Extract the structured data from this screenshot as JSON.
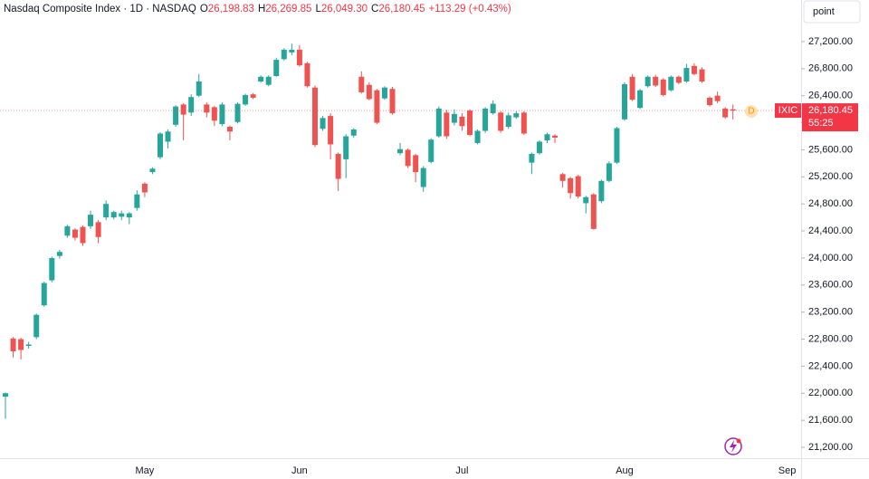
{
  "chart_data": {
    "type": "candlestick",
    "title": "Nasdaq Composite Index · 1D · NASDAQ",
    "ohlc_labels": [
      {
        "key": "O",
        "text": "26,198.83"
      },
      {
        "key": "H",
        "text": "26,269.85"
      },
      {
        "key": "L",
        "text": "26,049.30"
      },
      {
        "key": "C",
        "text": "26,180.45"
      }
    ],
    "change": "+113.29 (+0.43%)",
    "scale_button": "point",
    "symbol": "IXIC",
    "last_price_label": "26,180.45",
    "countdown": "55:25",
    "marker": "D",
    "up_color": "#26a69a",
    "down_color": "#ef5350",
    "categories": [
      null,
      null,
      null,
      null,
      null,
      null,
      null,
      null,
      null,
      null,
      null,
      null,
      null,
      null,
      null,
      null,
      null,
      null,
      "May",
      null,
      null,
      null,
      null,
      null,
      null,
      null,
      null,
      null,
      null,
      null,
      null,
      null,
      null,
      null,
      null,
      null,
      null,
      null,
      "Jun",
      null,
      null,
      null,
      null,
      null,
      null,
      null,
      null,
      null,
      null,
      null,
      null,
      null,
      null,
      null,
      null,
      null,
      null,
      null,
      null,
      "Jul",
      null,
      null,
      null,
      null,
      null,
      null,
      null,
      null,
      null,
      null,
      null,
      null,
      null,
      null,
      null,
      null,
      null,
      null,
      null,
      null,
      "Aug",
      null,
      null,
      null,
      null,
      null,
      null,
      null,
      null,
      null,
      null,
      null,
      null,
      null,
      null,
      null,
      null,
      null,
      null,
      null,
      null,
      "Sep"
    ],
    "open": [
      21950,
      22810,
      22800,
      22700,
      22830,
      23300,
      23670,
      24030,
      24330,
      24420,
      24460,
      24470,
      24530,
      24600,
      24600,
      24610,
      24600,
      24740,
      25100,
      25270,
      25490,
      25720,
      25970,
      26270,
      26150,
      26400,
      26270,
      26230,
      25980,
      25940,
      26010,
      26270,
      26420,
      26610,
      26560,
      26690,
      26940,
      27040,
      27080,
      26880,
      26520,
      25910,
      26100,
      25540,
      25460,
      25810,
      26680,
      26560,
      26480,
      26360,
      26500,
      25550,
      25600,
      25520,
      25050,
      25420,
      25800,
      26150,
      26000,
      26090,
      26180,
      25700,
      25880,
      26140,
      26150,
      25940,
      26080,
      26150,
      25410,
      25550,
      25740,
      25810,
      25240,
      25180,
      25210,
      24810,
      24940,
      24840,
      25140,
      25410,
      26050,
      26680,
      26220,
      26540,
      26680,
      26640,
      26480,
      26680,
      26610,
      26840,
      26790,
      26370,
      26400,
      26210,
      26198.83,
      null,
      null,
      null,
      null,
      null,
      null,
      null
    ],
    "high": [
      22010,
      22830,
      22820,
      22760,
      23180,
      23650,
      24020,
      24120,
      24490,
      24440,
      24480,
      24700,
      24560,
      24850,
      24700,
      24700,
      24680,
      25000,
      25120,
      25340,
      25860,
      25900,
      26260,
      26290,
      26420,
      26720,
      26300,
      26250,
      26300,
      25960,
      26300,
      26430,
      26440,
      26700,
      26700,
      26960,
      27100,
      27170,
      27150,
      26900,
      26550,
      26100,
      26140,
      25560,
      25830,
      25920,
      26760,
      26600,
      26500,
      26540,
      26530,
      25700,
      25620,
      25540,
      25360,
      25770,
      26240,
      26190,
      26200,
      26140,
      26200,
      25900,
      26230,
      26330,
      26170,
      26150,
      26170,
      26170,
      25560,
      25740,
      25850,
      25830,
      25260,
      25200,
      25230,
      24920,
      24960,
      25160,
      25430,
      25940,
      26600,
      26720,
      26500,
      26700,
      26710,
      26660,
      26700,
      26700,
      26870,
      26880,
      26820,
      26390,
      26460,
      26230,
      26269.85,
      null,
      null,
      null,
      null,
      null,
      null,
      null
    ],
    "low": [
      21620,
      22530,
      22500,
      22660,
      22800,
      23280,
      23640,
      23990,
      24300,
      24260,
      24180,
      24430,
      24220,
      24560,
      24570,
      24560,
      24500,
      24700,
      24900,
      25240,
      25460,
      25620,
      25940,
      25740,
      26100,
      26380,
      26080,
      25950,
      25950,
      25740,
      25990,
      26250,
      26350,
      26590,
      26540,
      26680,
      26920,
      27000,
      26830,
      26520,
      25640,
      25880,
      25460,
      24990,
      25180,
      25780,
      26430,
      26330,
      25980,
      26340,
      26120,
      25520,
      25330,
      25120,
      24980,
      25400,
      25780,
      25760,
      25960,
      25880,
      25800,
      25680,
      25850,
      26120,
      25850,
      25910,
      26060,
      25820,
      25240,
      25530,
      25700,
      25700,
      25040,
      24880,
      24880,
      24660,
      24420,
      24810,
      25120,
      25390,
      26030,
      26320,
      26200,
      26520,
      26530,
      26390,
      26460,
      26570,
      26590,
      26700,
      26590,
      26240,
      26290,
      26060,
      26049.3,
      null,
      null,
      null,
      null,
      null,
      null,
      null
    ],
    "close": [
      22000,
      22620,
      22640,
      22720,
      23160,
      23630,
      24000,
      24090,
      24470,
      24300,
      24220,
      24640,
      24310,
      24800,
      24680,
      24660,
      24660,
      24940,
      24970,
      25320,
      25840,
      25870,
      26240,
      26120,
      26380,
      26610,
      26150,
      26030,
      26270,
      25870,
      26280,
      26410,
      26370,
      26680,
      26680,
      26930,
      27080,
      27080,
      26850,
      26540,
      25670,
      26070,
      25680,
      25170,
      25800,
      25900,
      26450,
      26350,
      26000,
      26520,
      26140,
      25610,
      25360,
      25270,
      25330,
      25750,
      26210,
      25800,
      26130,
      25950,
      25820,
      25880,
      26210,
      26280,
      25880,
      26110,
      26140,
      25840,
      25540,
      25720,
      25830,
      25780,
      25140,
      24960,
      24910,
      24900,
      24430,
      25140,
      25400,
      25920,
      26570,
      26340,
      26480,
      26680,
      26550,
      26410,
      26680,
      26590,
      26810,
      26720,
      26610,
      26260,
      26320,
      26080,
      26180.45,
      null,
      null,
      null,
      null,
      null,
      null,
      null
    ],
    "ylim": [
      21040,
      27815
    ],
    "yticks": [
      {
        "value": 21200,
        "label": "21,200.00"
      },
      {
        "value": 21600,
        "label": "21,600.00"
      },
      {
        "value": 22000,
        "label": "22,000.00"
      },
      {
        "value": 22400,
        "label": "22,400.00"
      },
      {
        "value": 22800,
        "label": "22,800.00"
      },
      {
        "value": 23200,
        "label": "23,200.00"
      },
      {
        "value": 23600,
        "label": "23,600.00"
      },
      {
        "value": 24000,
        "label": "24,000.00"
      },
      {
        "value": 24400,
        "label": "24,400.00"
      },
      {
        "value": 24800,
        "label": "24,800.00"
      },
      {
        "value": 25200,
        "label": "25,200.00"
      },
      {
        "value": 25600,
        "label": "25,600.00"
      },
      {
        "value": 26000,
        "label": "26,000.00"
      },
      {
        "value": 26400,
        "label": "26,400.00"
      },
      {
        "value": 26800,
        "label": "26,800.00"
      },
      {
        "value": 27200,
        "label": "27,200.00"
      }
    ]
  }
}
